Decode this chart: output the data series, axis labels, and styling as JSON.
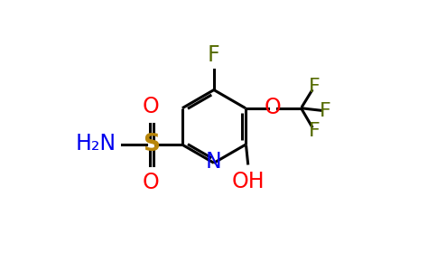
{
  "bg_color": "#ffffff",
  "black": "#000000",
  "blue": "#0000ee",
  "red": "#ff0000",
  "sulfur_yellow": "#b8860b",
  "green": "#556b00",
  "figsize": [
    4.84,
    3.0
  ],
  "dpi": 100,
  "xlim": [
    0,
    9.68
  ],
  "ylim": [
    0,
    6.0
  ]
}
